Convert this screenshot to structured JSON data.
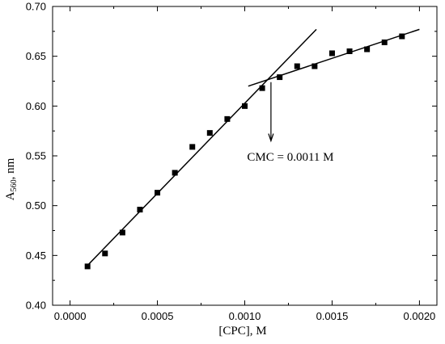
{
  "chart_data": {
    "type": "scatter",
    "xlabel": "[CPC], M",
    "ylabel_main": "A",
    "ylabel_sub": "560",
    "ylabel_suffix": ", nm",
    "xlim": [
      -0.0001,
      0.0021
    ],
    "ylim": [
      0.4,
      0.7
    ],
    "xticks": [
      0.0,
      0.0005,
      0.001,
      0.0015,
      0.002
    ],
    "xtick_labels": [
      "0.0000",
      "0.0005",
      "0.0010",
      "0.0015",
      "0.0020"
    ],
    "yticks": [
      0.4,
      0.45,
      0.5,
      0.55,
      0.6,
      0.65,
      0.7
    ],
    "ytick_labels": [
      "0.40",
      "0.45",
      "0.50",
      "0.55",
      "0.60",
      "0.65",
      "0.70"
    ],
    "grid": false,
    "series": [
      {
        "marker": "square",
        "color": "#000000",
        "x": [
          0.0001,
          0.0002,
          0.0003,
          0.0004,
          0.0005,
          0.0006,
          0.0007,
          0.0008,
          0.0009,
          0.001,
          0.0011,
          0.0012,
          0.0013,
          0.0014,
          0.0015,
          0.0016,
          0.0017,
          0.0018,
          0.0019
        ],
        "y": [
          0.439,
          0.452,
          0.473,
          0.496,
          0.513,
          0.533,
          0.559,
          0.573,
          0.587,
          0.6,
          0.618,
          0.629,
          0.64,
          0.64,
          0.653,
          0.655,
          0.657,
          0.664,
          0.67
        ]
      }
    ],
    "fit_lines": [
      {
        "x": [
          0.0001,
          0.00141
        ],
        "y": [
          0.44,
          0.677
        ]
      },
      {
        "x": [
          0.00102,
          0.002
        ],
        "y": [
          0.62,
          0.677
        ]
      }
    ],
    "annotation": {
      "text": "CMC = 0.0011 M",
      "arrow_x": 0.00115,
      "arrow_from_y": 0.624,
      "arrow_to_y": 0.565,
      "text_x": 0.00112,
      "text_y": 0.545
    }
  }
}
